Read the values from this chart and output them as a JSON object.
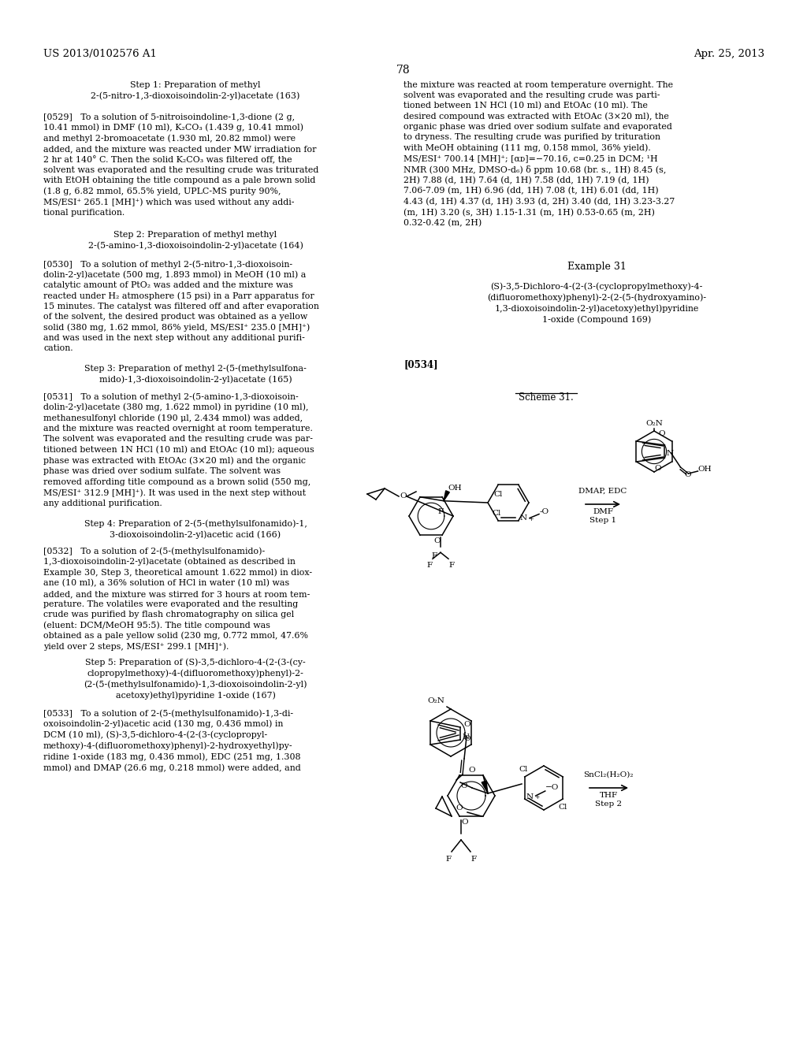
{
  "header_left": "US 2013/0102576 A1",
  "header_right": "Apr. 25, 2013",
  "page_number": "78",
  "bg": "#ffffff",
  "fg": "#000000"
}
